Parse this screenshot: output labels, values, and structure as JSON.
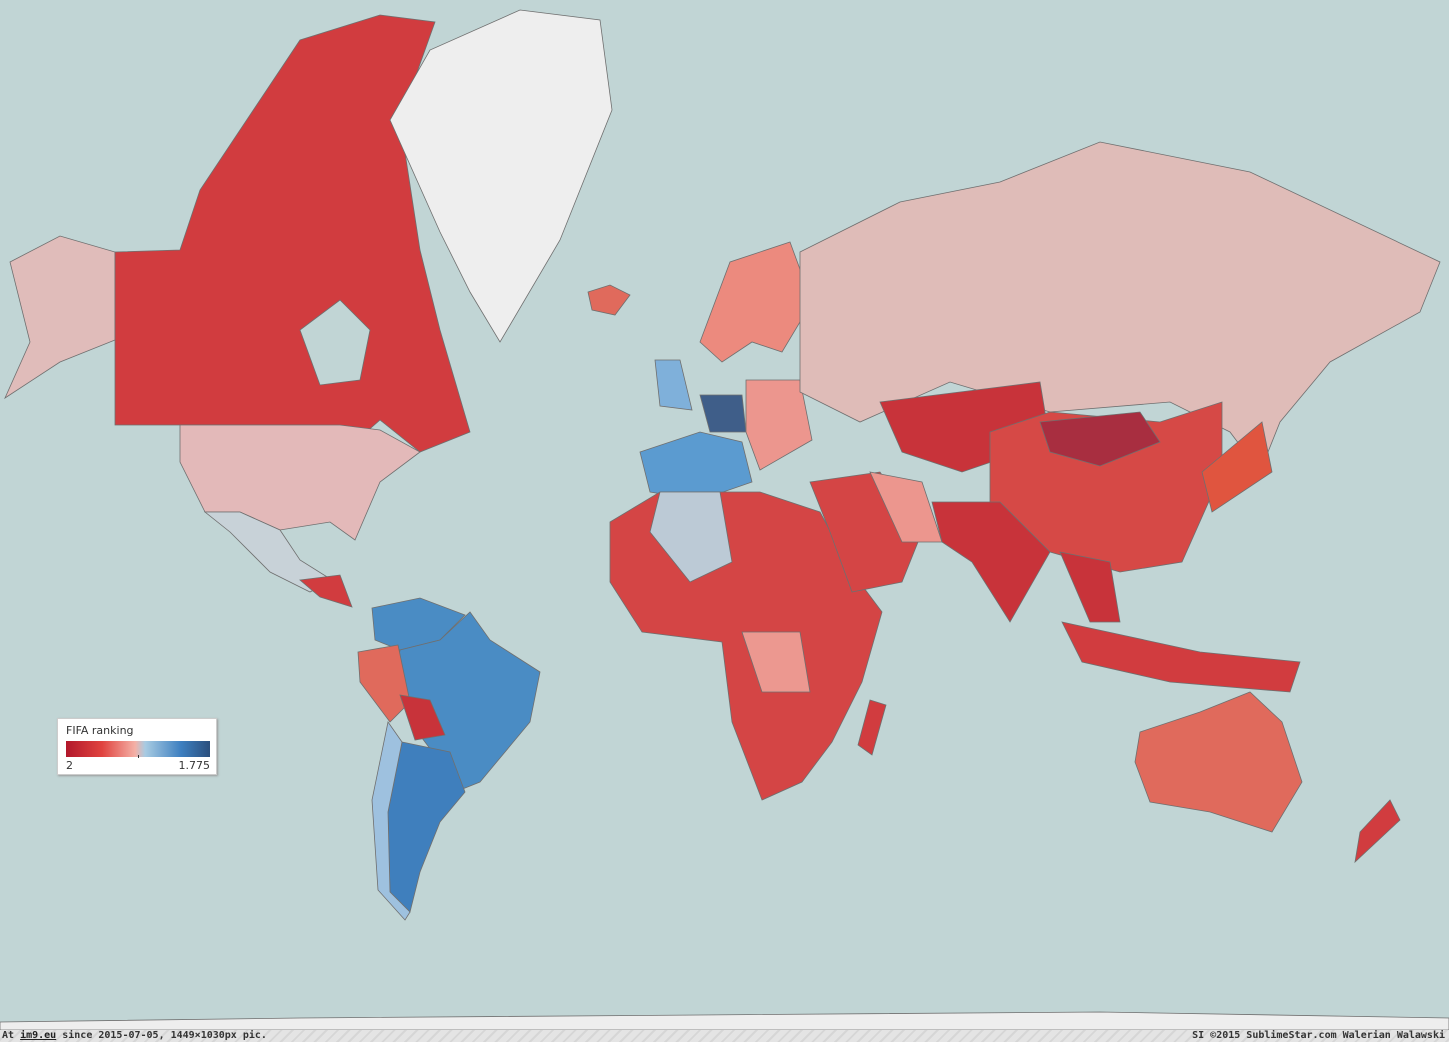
{
  "legend": {
    "title": "FIFA ranking",
    "min_label": "2",
    "max_label": "1.775"
  },
  "footer": {
    "prefix": "At",
    "site": "im9.eu",
    "since": "since 2015-07-05, 1449×1030px pic.",
    "credit": "SI ©2015 SublimeStar.com Walerian Walawski"
  }
}
